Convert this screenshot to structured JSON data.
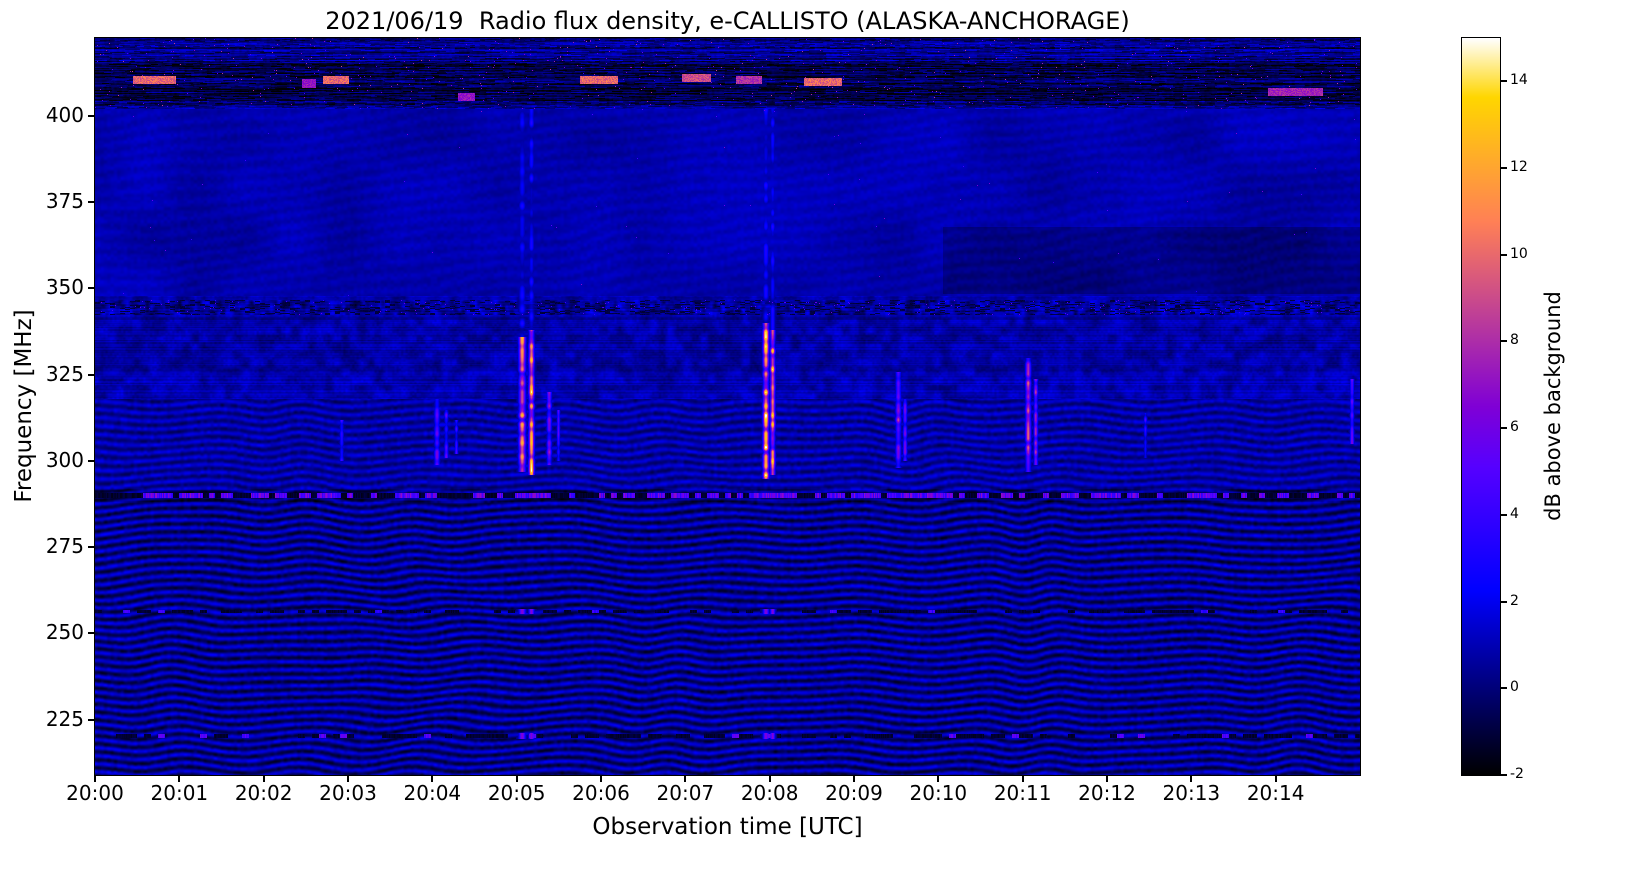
{
  "chart_data": {
    "type": "heatmap",
    "title": "2021/06/19  Radio flux density, e-CALLISTO (ALASKA-ANCHORAGE)",
    "xlabel": "Observation time [UTC]",
    "ylabel": "Frequency [MHz]",
    "colorbar_label": "dB above background",
    "colormap": "gnuplot2",
    "x_tick_labels": [
      "20:00",
      "20:01",
      "20:02",
      "20:03",
      "20:04",
      "20:05",
      "20:06",
      "20:07",
      "20:08",
      "20:09",
      "20:10",
      "20:11",
      "20:12",
      "20:13",
      "20:14"
    ],
    "x_span_minutes": 15,
    "y_tick_values_mhz": [
      400,
      375,
      350,
      325,
      300,
      275,
      250,
      225
    ],
    "freq_range_mhz": [
      209,
      422.5
    ],
    "value_range_db": [
      -2,
      15
    ],
    "colorbar_tick_values": [
      14,
      12,
      10,
      8,
      6,
      4,
      2,
      0,
      -2
    ],
    "background_level_db": 0.6,
    "features": {
      "ripple_interference": {
        "freq_below_mhz": 318,
        "strong_below_mhz": 292,
        "description": "wavy diagonal interference fringes over the lower half of the band"
      },
      "rfi_channels": [
        {
          "freq_mhz": 290,
          "style": "bright_dotted",
          "peak_db": 7
        },
        {
          "freq_mhz": 256.5,
          "style": "dark_dotted",
          "peak_db": 4
        },
        {
          "freq_mhz": 220.5,
          "style": "dark_dotted",
          "peak_db": 5
        },
        {
          "freq_mhz": 344.5,
          "style": "noisy_band",
          "peak_db": 6
        }
      ],
      "top_band": {
        "freq_range_mhz": [
          402,
          418
        ],
        "style": "dark rows with bright RFI dashes"
      },
      "rfi_dashes": [
        {
          "t_min": 0.45,
          "t_max": 0.95,
          "freq_mhz": 410.5,
          "peak_db": 11
        },
        {
          "t_min": 2.45,
          "t_max": 2.62,
          "freq_mhz": 409.5,
          "peak_db": 8
        },
        {
          "t_min": 2.7,
          "t_max": 3.0,
          "freq_mhz": 410.5,
          "peak_db": 11
        },
        {
          "t_min": 4.3,
          "t_max": 4.5,
          "freq_mhz": 405.5,
          "peak_db": 8
        },
        {
          "t_min": 5.75,
          "t_max": 6.2,
          "freq_mhz": 410.5,
          "peak_db": 11
        },
        {
          "t_min": 6.95,
          "t_max": 7.3,
          "freq_mhz": 411.0,
          "peak_db": 10
        },
        {
          "t_min": 7.6,
          "t_max": 7.9,
          "freq_mhz": 410.5,
          "peak_db": 9
        },
        {
          "t_min": 8.4,
          "t_max": 8.85,
          "freq_mhz": 410.0,
          "peak_db": 11
        },
        {
          "t_min": 13.9,
          "t_max": 14.55,
          "freq_mhz": 407.0,
          "peak_db": 8.5
        }
      ],
      "bursts": [
        {
          "t": 2.92,
          "f1": 300,
          "f2": 312,
          "peak_db": 4.5,
          "width_min": 0.015
        },
        {
          "t": 4.05,
          "f1": 299,
          "f2": 318,
          "peak_db": 6.0,
          "width_min": 0.02
        },
        {
          "t": 4.16,
          "f1": 301,
          "f2": 315,
          "peak_db": 5.5,
          "width_min": 0.015
        },
        {
          "t": 4.28,
          "f1": 302,
          "f2": 312,
          "peak_db": 4.5,
          "width_min": 0.012
        },
        {
          "t": 5.06,
          "f1": 297,
          "f2": 336,
          "peak_db": 12.0,
          "width_min": 0.025
        },
        {
          "t": 5.17,
          "f1": 296,
          "f2": 338,
          "peak_db": 14.0,
          "width_min": 0.02
        },
        {
          "t": 5.38,
          "f1": 299,
          "f2": 320,
          "peak_db": 7.0,
          "width_min": 0.018
        },
        {
          "t": 5.49,
          "f1": 300,
          "f2": 315,
          "peak_db": 5.5,
          "width_min": 0.012
        },
        {
          "t": 7.95,
          "f1": 295,
          "f2": 340,
          "peak_db": 15.0,
          "width_min": 0.022
        },
        {
          "t": 8.03,
          "f1": 296,
          "f2": 338,
          "peak_db": 13.0,
          "width_min": 0.018
        },
        {
          "t": 9.52,
          "f1": 298,
          "f2": 326,
          "peak_db": 8.0,
          "width_min": 0.02
        },
        {
          "t": 9.6,
          "f1": 300,
          "f2": 318,
          "peak_db": 6.5,
          "width_min": 0.015
        },
        {
          "t": 11.06,
          "f1": 297,
          "f2": 330,
          "peak_db": 10.0,
          "width_min": 0.02
        },
        {
          "t": 11.15,
          "f1": 299,
          "f2": 324,
          "peak_db": 9.0,
          "width_min": 0.015
        },
        {
          "t": 12.45,
          "f1": 301,
          "f2": 314,
          "peak_db": 4.5,
          "width_min": 0.012
        },
        {
          "t": 14.9,
          "f1": 305,
          "f2": 324,
          "peak_db": 6.0,
          "width_min": 0.015
        }
      ],
      "dark_patch": {
        "t_min": 10.05,
        "t_max": 15,
        "freq_range_mhz": [
          348.5,
          368
        ],
        "delta_db": -0.75
      }
    }
  }
}
